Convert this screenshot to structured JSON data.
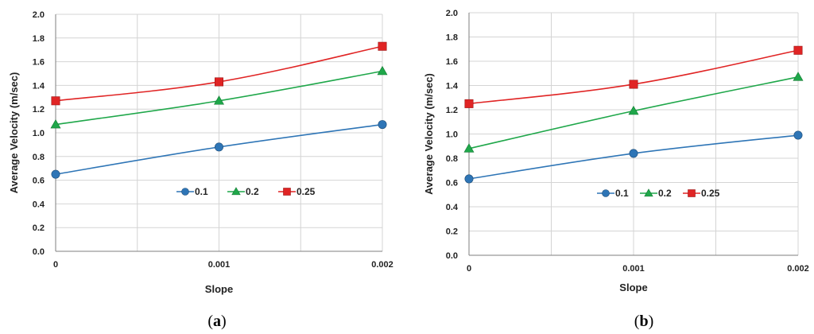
{
  "chart_data": [
    {
      "type": "line",
      "caption_open": "(",
      "caption_letter": "a",
      "caption_close": ")",
      "xlabel": "Slope",
      "ylabel": "Average Velocity (m/sec)",
      "x": [
        0,
        0.001,
        0.002
      ],
      "x_tick_labels": [
        "0",
        "0.001",
        "0.002"
      ],
      "ylim": [
        0,
        2.0
      ],
      "y_ticks": [
        0,
        0.2,
        0.4,
        0.6,
        0.8,
        1.0,
        1.2,
        1.4,
        1.6,
        1.8,
        2.0
      ],
      "y_tick_labels": [
        "0.0",
        "0.2",
        "0.4",
        "0.6",
        "0.8",
        "1.0",
        "1.2",
        "1.4",
        "1.6",
        "1.8",
        "2.0"
      ],
      "grid": true,
      "legend_position": "center-right",
      "series": [
        {
          "name": "0.1",
          "values": [
            0.65,
            0.88,
            1.07
          ],
          "color": "#2E75B6",
          "marker": "circle"
        },
        {
          "name": "0.2",
          "values": [
            1.07,
            1.27,
            1.52
          ],
          "color": "#1FA74A",
          "marker": "triangle"
        },
        {
          "name": "0.25",
          "values": [
            1.27,
            1.43,
            1.73
          ],
          "color": "#E02424",
          "marker": "square"
        }
      ]
    },
    {
      "type": "line",
      "caption_open": "(",
      "caption_letter": "b",
      "caption_close": ")",
      "xlabel": "Slope",
      "ylabel": "Average Velocity (m/sec)",
      "x": [
        0,
        0.001,
        0.002
      ],
      "x_tick_labels": [
        "0",
        "0.001",
        "0.002"
      ],
      "ylim": [
        0,
        2.0
      ],
      "y_ticks": [
        0,
        0.2,
        0.4,
        0.6,
        0.8,
        1.0,
        1.2,
        1.4,
        1.6,
        1.8,
        2.0
      ],
      "y_tick_labels": [
        "0.0",
        "0.2",
        "0.4",
        "0.6",
        "0.8",
        "1.0",
        "1.2",
        "1.4",
        "1.6",
        "1.8",
        "2.0"
      ],
      "grid": true,
      "legend_position": "center-right",
      "series": [
        {
          "name": "0.1",
          "values": [
            0.63,
            0.84,
            0.99
          ],
          "color": "#2E75B6",
          "marker": "circle"
        },
        {
          "name": "0.2",
          "values": [
            0.88,
            1.19,
            1.47
          ],
          "color": "#1FA74A",
          "marker": "triangle"
        },
        {
          "name": "0.25",
          "values": [
            1.25,
            1.41,
            1.69
          ],
          "color": "#E02424",
          "marker": "square"
        }
      ]
    }
  ]
}
